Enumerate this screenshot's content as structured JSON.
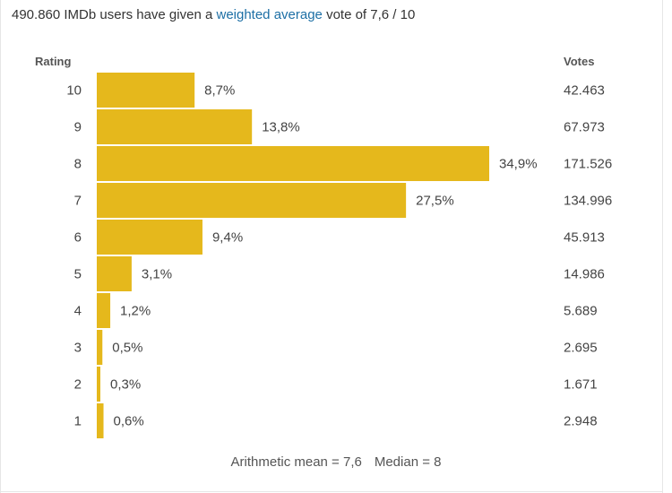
{
  "summary": {
    "prefix": "490.860 IMDb users have given a ",
    "link": "weighted average",
    "suffix": " vote of 7,6 / 10"
  },
  "headers": {
    "rating": "Rating",
    "votes": "Votes"
  },
  "colors": {
    "bar": "#e5b81c",
    "link": "#1d6fa5"
  },
  "chart_data": {
    "type": "bar",
    "orientation": "horizontal",
    "xlim": [
      0,
      34.9
    ],
    "rows": [
      {
        "rating": "10",
        "percent": 8.7,
        "percent_label": "8,7%",
        "votes": "42.463"
      },
      {
        "rating": "9",
        "percent": 13.8,
        "percent_label": "13,8%",
        "votes": "67.973"
      },
      {
        "rating": "8",
        "percent": 34.9,
        "percent_label": "34,9%",
        "votes": "171.526"
      },
      {
        "rating": "7",
        "percent": 27.5,
        "percent_label": "27,5%",
        "votes": "134.996"
      },
      {
        "rating": "6",
        "percent": 9.4,
        "percent_label": "9,4%",
        "votes": "45.913"
      },
      {
        "rating": "5",
        "percent": 3.1,
        "percent_label": "3,1%",
        "votes": "14.986"
      },
      {
        "rating": "4",
        "percent": 1.2,
        "percent_label": "1,2%",
        "votes": "5.689"
      },
      {
        "rating": "3",
        "percent": 0.5,
        "percent_label": "0,5%",
        "votes": "2.695"
      },
      {
        "rating": "2",
        "percent": 0.3,
        "percent_label": "0,3%",
        "votes": "1.671"
      },
      {
        "rating": "1",
        "percent": 0.6,
        "percent_label": "0,6%",
        "votes": "2.948"
      }
    ]
  },
  "footer": {
    "mean": "Arithmetic mean = 7,6",
    "median": "Median = 8"
  }
}
